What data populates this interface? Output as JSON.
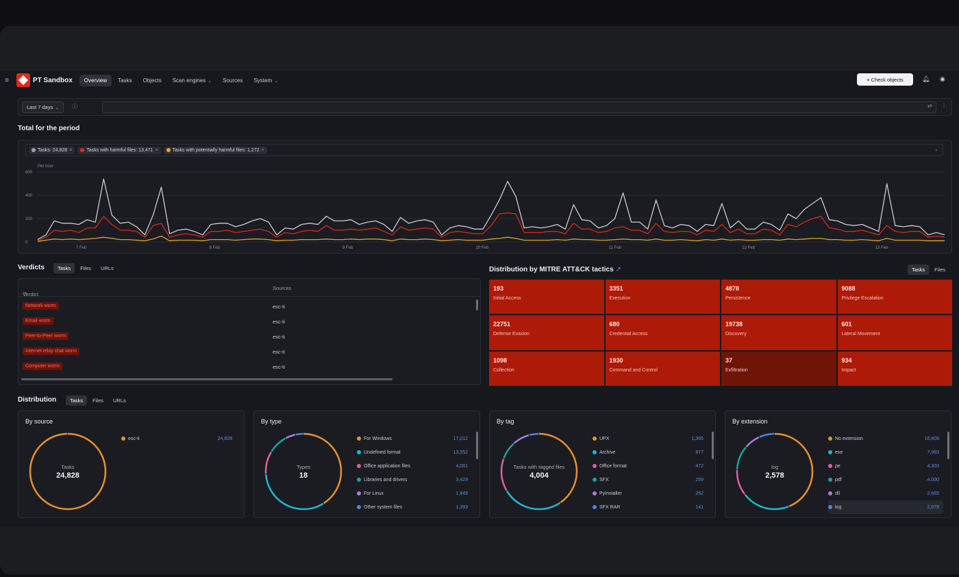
{
  "header": {
    "app_name": "PT Sandbox",
    "nav": [
      {
        "label": "Overview",
        "active": true
      },
      {
        "label": "Tasks"
      },
      {
        "label": "Objects"
      },
      {
        "label": "Scan engines",
        "dropdown": true
      },
      {
        "label": "Sources"
      },
      {
        "label": "System",
        "dropdown": true
      }
    ],
    "check_button": "+ Check objects"
  },
  "filter": {
    "period": "Last 7 days"
  },
  "period_section": {
    "title": "Total for the period",
    "chips": [
      {
        "label": "Tasks: 24,828",
        "color": "#9aa0ab"
      },
      {
        "label": "Tasks with harmful files: 13,471",
        "color": "#e02a1a"
      },
      {
        "label": "Tasks with potentially harmful files: 1,272",
        "color": "#f0a030"
      }
    ]
  },
  "chart_data": {
    "type": "line",
    "ylabel": "Per hour",
    "y_ticks": [
      "600",
      "400",
      "200",
      "0"
    ],
    "ylim": [
      0,
      600
    ],
    "x_ticks": [
      "7 Feb",
      "8 Feb",
      "9 Feb",
      "10 Feb",
      "11 Feb",
      "12 Feb",
      "13 Feb"
    ],
    "series": [
      {
        "name": "Tasks",
        "color": "#c9ccd3",
        "values": [
          20,
          60,
          180,
          160,
          160,
          150,
          190,
          170,
          540,
          230,
          160,
          170,
          130,
          60,
          230,
          470,
          70,
          100,
          110,
          90,
          60,
          150,
          160,
          160,
          130,
          150,
          180,
          200,
          170,
          60,
          120,
          110,
          150,
          160,
          150,
          220,
          180,
          180,
          190,
          150,
          170,
          180,
          150,
          90,
          210,
          160,
          180,
          190,
          170,
          60,
          120,
          140,
          130,
          110,
          110,
          230,
          360,
          520,
          390,
          120,
          130,
          120,
          130,
          150,
          110,
          320,
          190,
          180,
          120,
          140,
          200,
          420,
          170,
          170,
          110,
          360,
          140,
          120,
          150,
          140,
          90,
          150,
          140,
          330,
          120,
          180,
          110,
          110,
          170,
          150,
          100,
          240,
          200,
          280,
          330,
          380,
          190,
          180,
          150,
          140,
          150,
          120,
          90,
          500,
          140,
          130,
          140,
          130,
          60,
          80,
          60
        ]
      },
      {
        "name": "Tasks with harmful files",
        "color": "#d8281a",
        "values": [
          10,
          40,
          100,
          90,
          100,
          80,
          120,
          120,
          220,
          150,
          100,
          100,
          90,
          40,
          140,
          160,
          40,
          60,
          70,
          60,
          40,
          90,
          90,
          100,
          80,
          90,
          100,
          110,
          90,
          40,
          80,
          70,
          90,
          100,
          90,
          140,
          100,
          100,
          110,
          100,
          110,
          120,
          90,
          60,
          130,
          100,
          110,
          120,
          110,
          40,
          80,
          90,
          80,
          70,
          70,
          140,
          240,
          250,
          240,
          80,
          80,
          80,
          90,
          90,
          70,
          160,
          110,
          110,
          80,
          90,
          120,
          130,
          100,
          100,
          70,
          160,
          90,
          80,
          90,
          90,
          60,
          100,
          90,
          150,
          80,
          110,
          70,
          70,
          110,
          100,
          60,
          150,
          130,
          170,
          200,
          220,
          120,
          110,
          90,
          90,
          100,
          80,
          60,
          140,
          90,
          80,
          90,
          90,
          40,
          50,
          40
        ]
      },
      {
        "name": "Tasks with potentially harmful files",
        "color": "#e2a22c",
        "values": [
          5,
          15,
          25,
          20,
          25,
          20,
          25,
          30,
          40,
          30,
          20,
          20,
          15,
          10,
          25,
          50,
          10,
          15,
          15,
          15,
          10,
          20,
          20,
          20,
          15,
          20,
          25,
          25,
          20,
          10,
          15,
          15,
          20,
          20,
          20,
          25,
          20,
          20,
          25,
          20,
          25,
          25,
          20,
          10,
          25,
          20,
          20,
          25,
          20,
          10,
          15,
          20,
          15,
          15,
          15,
          25,
          30,
          40,
          30,
          15,
          15,
          15,
          15,
          20,
          15,
          25,
          20,
          20,
          15,
          15,
          20,
          25,
          20,
          20,
          15,
          25,
          15,
          15,
          20,
          15,
          10,
          20,
          15,
          25,
          15,
          20,
          15,
          15,
          20,
          20,
          15,
          25,
          20,
          25,
          30,
          30,
          20,
          20,
          15,
          15,
          20,
          15,
          10,
          30,
          15,
          15,
          15,
          15,
          10,
          10,
          10
        ]
      }
    ]
  },
  "verdicts": {
    "title": "Verdicts",
    "tabs": [
      "Tasks",
      "Files",
      "URLs"
    ],
    "columns": [
      "Verdict",
      "Sources"
    ],
    "rows": [
      {
        "verdict": "Network worm",
        "source": "esc-ti"
      },
      {
        "verdict": "Email worm",
        "source": "esc-ti"
      },
      {
        "verdict": "Peer-to-Peer worm",
        "source": "esc-ti"
      },
      {
        "verdict": "Internet relay chat worm",
        "source": "esc-ti"
      },
      {
        "verdict": "Computer worm",
        "source": "esc-ti"
      }
    ]
  },
  "mitre": {
    "title": "Distribution by MITRE ATT&CK tactics",
    "tabs": [
      "Tasks",
      "Files"
    ],
    "cells": [
      {
        "value": "193",
        "label": "Initial Access"
      },
      {
        "value": "3351",
        "label": "Execution"
      },
      {
        "value": "4878",
        "label": "Persistence"
      },
      {
        "value": "9088",
        "label": "Privilege Escalation"
      },
      {
        "value": "22751",
        "label": "Defense Evasion"
      },
      {
        "value": "680",
        "label": "Credential Access"
      },
      {
        "value": "19738",
        "label": "Discovery"
      },
      {
        "value": "601",
        "label": "Lateral Movement"
      },
      {
        "value": "1098",
        "label": "Collection"
      },
      {
        "value": "1930",
        "label": "Command and Control"
      },
      {
        "value": "37",
        "label": "Exfiltration",
        "dim": true
      },
      {
        "value": "934",
        "label": "Impact"
      }
    ]
  },
  "distribution": {
    "title": "Distribution",
    "tabs": [
      "Tasks",
      "Files",
      "URLs"
    ],
    "panels": [
      {
        "title": "By source",
        "center_label": "Tasks",
        "center_value": "24,828",
        "items": [
          {
            "label": "esc-ti",
            "value": "24,828",
            "color": "#e8912e"
          }
        ]
      },
      {
        "title": "By type",
        "center_label": "Types",
        "center_value": "18",
        "items": [
          {
            "label": "For Windows",
            "value": "17,012",
            "color": "#e8912e"
          },
          {
            "label": "Undefined format",
            "value": "13,552",
            "color": "#1fb7d6"
          },
          {
            "label": "Office application files",
            "value": "4,061",
            "color": "#e0609e"
          },
          {
            "label": "Libraries and drivers",
            "value": "3,429",
            "color": "#1aa6a0"
          },
          {
            "label": "For Linux",
            "value": "1,849",
            "color": "#a67fe0"
          },
          {
            "label": "Other system files",
            "value": "1,393",
            "color": "#4a88e2"
          }
        ]
      },
      {
        "title": "By tag",
        "center_label": "Tasks with tagged files",
        "center_value": "4,004",
        "items": [
          {
            "label": "UPX",
            "value": "1,365",
            "color": "#e8912e"
          },
          {
            "label": "Archive",
            "value": "877",
            "color": "#1fb7d6"
          },
          {
            "label": "Office format",
            "value": "472",
            "color": "#e0609e"
          },
          {
            "label": "SFX",
            "value": "259",
            "color": "#1aa6a0"
          },
          {
            "label": "PyInstaller",
            "value": "252",
            "color": "#a67fe0"
          },
          {
            "label": "SFX RAR",
            "value": "141",
            "color": "#4a88e2"
          }
        ]
      },
      {
        "title": "By extension",
        "center_label": "log",
        "center_value": "2,578",
        "items": [
          {
            "label": "No extension",
            "value": "16,809",
            "color": "#e8912e"
          },
          {
            "label": "exe",
            "value": "7,963",
            "color": "#1fb7d6"
          },
          {
            "label": "pe",
            "value": "4,303",
            "color": "#e0609e"
          },
          {
            "label": "pdf",
            "value": "4,000",
            "color": "#1aa6a0"
          },
          {
            "label": "dll",
            "value": "2,665",
            "color": "#a67fe0"
          },
          {
            "label": "log",
            "value": "2,578",
            "color": "#4a88e2",
            "highlight": true
          }
        ]
      }
    ]
  }
}
